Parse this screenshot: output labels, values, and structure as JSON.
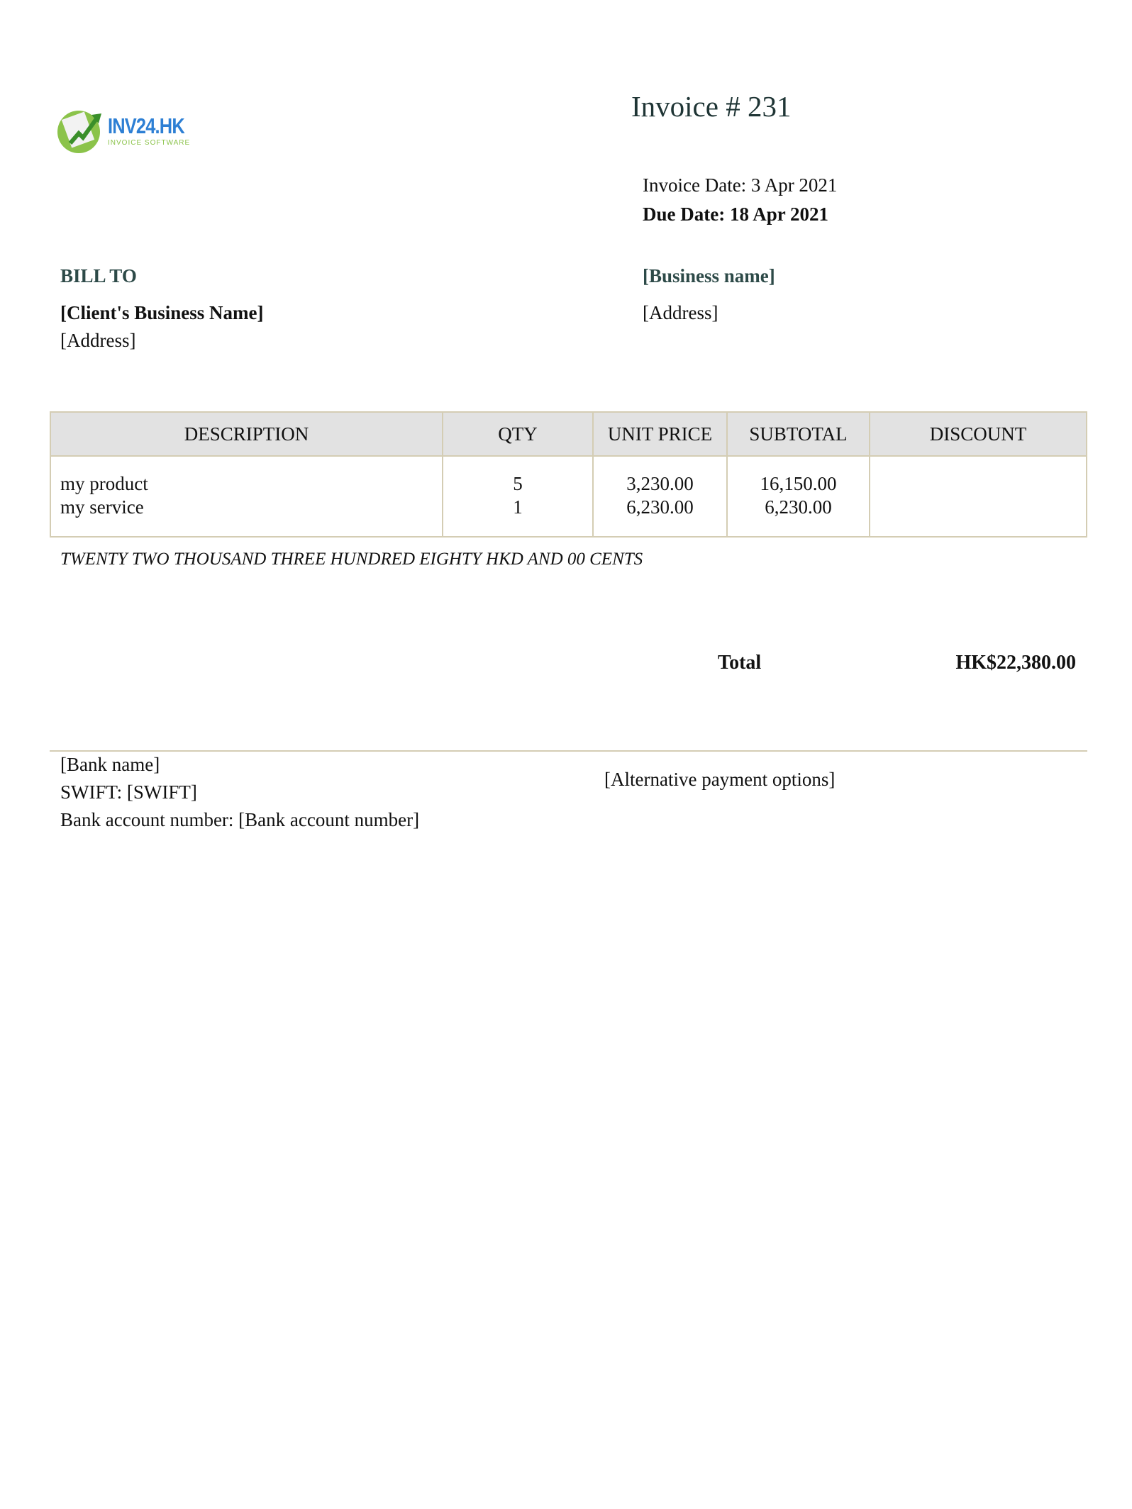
{
  "logo": {
    "brand": "INV24.HK",
    "tagline": "INVOICE SOFTWARE"
  },
  "invoice": {
    "title": "Invoice #  231",
    "invoice_date": "Invoice Date: 3 Apr 2021",
    "due_date": "Due Date: 18 Apr 2021"
  },
  "bill_to": {
    "label": "BILL TO",
    "client_name": "[Client's Business Name]",
    "address": "[Address]"
  },
  "from": {
    "business_name": "[Business name]",
    "address": "[Address]"
  },
  "table": {
    "headers": [
      "DESCRIPTION",
      "QTY",
      "UNIT PRICE",
      "SUBTOTAL",
      "DISCOUNT"
    ],
    "rows": [
      {
        "description": "my product",
        "qty": "5",
        "unit_price": "3,230.00",
        "subtotal": "16,150.00",
        "discount": ""
      },
      {
        "description": "my service",
        "qty": "1",
        "unit_price": "6,230.00",
        "subtotal": "6,230.00",
        "discount": ""
      }
    ]
  },
  "amount_in_words": "TWENTY TWO THOUSAND  THREE HUNDRED EIGHTY HKD AND 00 CENTS",
  "total": {
    "label": "Total",
    "value": "HK$22,380.00"
  },
  "payment": {
    "bank_name": "[Bank name]",
    "swift": "SWIFT: [SWIFT]",
    "account": "Bank account number: [Bank account number]",
    "alternative": "[Alternative payment options]"
  },
  "colors": {
    "title": "#1f3535",
    "accent": "#2d4a48",
    "table_border": "#d4cdb4",
    "header_bg": "#e2e2e2",
    "logo_blue": "#2d7fd4",
    "logo_green": "#8bc34a"
  }
}
